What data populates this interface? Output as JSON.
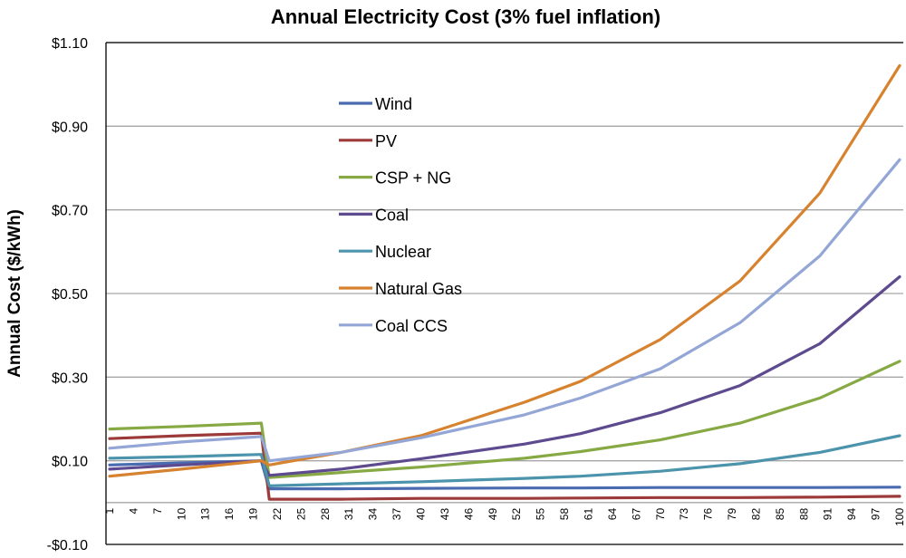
{
  "chart_data": {
    "type": "line",
    "title": "Annual Electricity Cost (3% fuel inflation)",
    "xlabel": "",
    "ylabel": "Annual Cost ($/kWh)",
    "ylim": [
      -0.1,
      1.1
    ],
    "xlim": [
      1,
      100
    ],
    "y_ticks": [
      -0.1,
      0.1,
      0.3,
      0.5,
      0.7,
      0.9,
      1.1
    ],
    "y_tick_labels": [
      "-$0.10",
      "$0.10",
      "$0.30",
      "$0.50",
      "$0.70",
      "$0.90",
      "$1.10"
    ],
    "y_gridlines": [
      0.1,
      0.3,
      0.5,
      0.7,
      0.9,
      1.1
    ],
    "x_axis_crosses_at": 0.0,
    "x_tick_labels": [
      "1",
      "4",
      "7",
      "10",
      "13",
      "16",
      "19",
      "22",
      "25",
      "28",
      "31",
      "34",
      "37",
      "40",
      "43",
      "46",
      "49",
      "52",
      "55",
      "58",
      "61",
      "64",
      "67",
      "70",
      "73",
      "76",
      "79",
      "82",
      "85",
      "88",
      "91",
      "94",
      "97",
      "100"
    ],
    "grid": true,
    "legend_position": "upper-left-inside",
    "x": [
      1,
      10,
      20,
      21,
      30,
      40,
      53,
      60,
      70,
      80,
      90,
      100
    ],
    "series": [
      {
        "name": "Wind",
        "color": "#4A6BB0",
        "values": [
          0.09,
          0.095,
          0.1,
          0.033,
          0.033,
          0.034,
          0.035,
          0.035,
          0.036,
          0.036,
          0.036,
          0.037
        ]
      },
      {
        "name": "PV",
        "color": "#9B3A38",
        "values": [
          0.153,
          0.16,
          0.166,
          0.008,
          0.008,
          0.01,
          0.01,
          0.011,
          0.012,
          0.012,
          0.013,
          0.015
        ]
      },
      {
        "name": "CSP + NG",
        "color": "#86A944",
        "values": [
          0.176,
          0.182,
          0.19,
          0.06,
          0.072,
          0.085,
          0.106,
          0.122,
          0.15,
          0.19,
          0.25,
          0.338
        ]
      },
      {
        "name": "Coal",
        "color": "#5E4A8E",
        "values": [
          0.08,
          0.09,
          0.1,
          0.065,
          0.08,
          0.105,
          0.14,
          0.165,
          0.215,
          0.28,
          0.38,
          0.54
        ]
      },
      {
        "name": "Nuclear",
        "color": "#4C93AC",
        "values": [
          0.106,
          0.11,
          0.115,
          0.04,
          0.045,
          0.05,
          0.058,
          0.063,
          0.075,
          0.093,
          0.12,
          0.16
        ]
      },
      {
        "name": "Natural Gas",
        "color": "#D7822F",
        "values": [
          0.063,
          0.08,
          0.1,
          0.09,
          0.12,
          0.16,
          0.24,
          0.29,
          0.39,
          0.53,
          0.74,
          1.045
        ]
      },
      {
        "name": "Coal CCS",
        "color": "#93A6D6",
        "values": [
          0.13,
          0.145,
          0.158,
          0.1,
          0.12,
          0.155,
          0.21,
          0.25,
          0.32,
          0.43,
          0.59,
          0.82
        ]
      }
    ]
  }
}
